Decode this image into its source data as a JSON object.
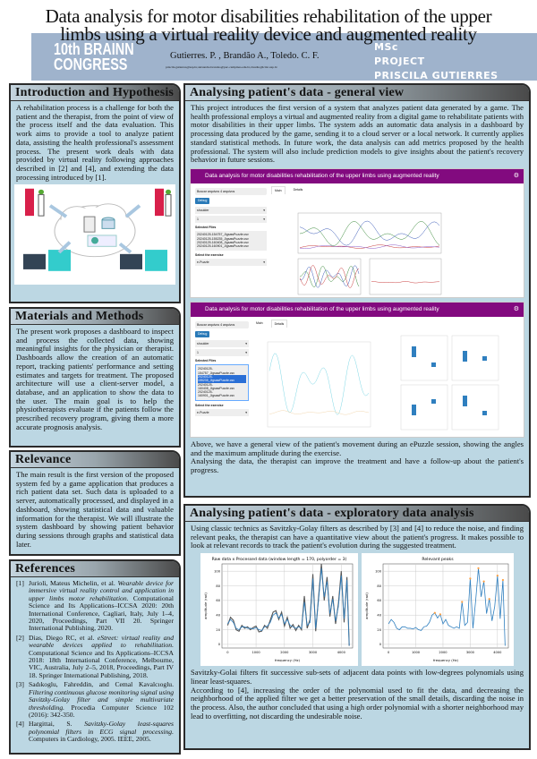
{
  "header": {
    "title_line1": "Data analysis for motor disabilities rehabilitation of the upper",
    "title_line2": "limbs using a virtual reality device and augmented reality",
    "congress_line1": "10th BRAINN",
    "congress_line2": "CONGRESS",
    "authors": "Gutierres. P. , Brandão A., Toledo. C. F.",
    "emails": "priscila.gutierres@usp.br,alexandre.brandao@puc-campinas.edu.br,claudio@icmc.usp.br",
    "project_line1": "MSc",
    "project_line2": "PROJECT",
    "project_line3": "PRISCILA GUTIERRES",
    "band_color": "#9fb3cc"
  },
  "intro": {
    "title": "Introduction and Hypothesis",
    "body": "A rehabilitation process is a challenge for both the patient and the therapist, from the point of view of the process itself and the data evaluation. This work aims to provide a tool to analyze patient data, assisting the health professional's assessment process. The present work deals with data provided by virtual reality following approaches described in [2] and [4], and extending the data processing introduced by [1]."
  },
  "methods": {
    "title": "Materials and Methods",
    "body": "The present work proposes a dashboard to inspect and process the collected data, showing meaningful insights for the physician or therapist. Dashboards allow the creation of an automatic report, tracking patients' performance and setting estimates and targets for treatment. The proposed architecture will use a client-server model, a database, and an application to show the data to the user. The main goal is to help the physiotherapists evaluate if the patients follow the prescribed recovery program, giving them a more accurate prognosis analysis."
  },
  "relevance": {
    "title": "Relevance",
    "body": "The main result is the first version of the proposed system fed by a game application that produces a rich patient data set. Such data is uploaded to a server, automatically processed, and displayed in a dashboard, showing statistical data and valuable information for the therapist. We will illustrate the system dashboard by showing patient behavior during sessions through graphs and statistical data later."
  },
  "references": {
    "title": "References",
    "items": [
      {
        "n": "[1]",
        "authors": "Jurioli, Mateus Michelin, et al.",
        "title": "Wearable device for immersive virtual reality control and application in upper limbs motor rehabilitation.",
        "rest": "Computational Science and Its Applications–ICCSA 2020: 20th International Conference, Cagliari, Italy, July 1–4, 2020, Proceedings, Part VII 20. Springer International Publishing, 2020."
      },
      {
        "n": "[2]",
        "authors": "Dias, Diego RC, et al.",
        "title": "eStreet: virtual reality and wearable devices applied to rehabilitation.",
        "rest": "Computational Science and Its Applications–ICCSA 2018: 18th International Conference, Melbourne, VIC, Australia, July 2–5, 2018, Proceedings, Part IV 18. Springer International Publishing, 2018."
      },
      {
        "n": "[3]",
        "authors": "Sadıkoglu, Fahreddin, and Cemal Kavalcıoglu.",
        "title": "Filtering continuous glucose monitoring signal using Savitzky-Golay filter and simple multivariate thresholding.",
        "rest": "Procedia Computer Science 102 (2016): 342-350."
      },
      {
        "n": "[4]",
        "authors": "Hargittai, S.",
        "title": "Savitzky-Golay least-squares polynomial filters in ECG signal processing.",
        "rest": "Computers in Cardiology, 2005. IEEE, 2005."
      }
    ]
  },
  "general": {
    "title": "Analysing patient's data - general view",
    "body": "This project introduces the first version of a system that analyzes patient data generated by a game. The health professional employs a virtual and augmented reality from a digital game to rehabilitate patients with motor disabilities in their upper limbs. The system adds an automatic data analysis in a dashboard by processing data produced by the game, sending it to a cloud server or a local network. It currently applies standard statistical methods. In future work, the data analysis can add metrics proposed by the health professional. The system will also include prediction models to give insights about the patient's recovery behavior in future sessions.",
    "after1": "Above, we have a general view of the patient's movement during an ePuzzle session, showing the angles and the maximum amplitude during the exercise.",
    "after2": "Analysing the data, the therapist can improve the treatment and have a follow-up about the patient's progress.",
    "dashboard": {
      "app_title": "Data analysis for motor disabilities rehabilitation of the upper limbs using augmented reality",
      "browse": "Buscar arquivos",
      "file_count": "4 arquivos",
      "debug": "Debug",
      "joint": "shoulder",
      "index": "1",
      "selected_files_label": "Selected Files",
      "files": [
        "20240125-154757_JigsawPuzzle.csv",
        "20240125-155235_JigsawPuzzle.csv",
        "20240125-160408_JigsawPuzzle.csv",
        "20240125-160901_JigsawPuzzle.csv"
      ],
      "exercise_label": "Select the exercise",
      "exercise": "e-Puzzle",
      "tab_main": "Main",
      "tab_details": "Details",
      "accent": "#820a7f"
    }
  },
  "exploratory": {
    "title": "Analysing patient's data - exploratory data analysis",
    "body": "Using classic technics as Savitzky-Golay filters as described by [3] and [4] to reduce the noise, and finding relevant peaks, the therapist can have a quantitative view about the patient's progress. It makes possible to look at relevant records to track the patient's evolution during the suggested treatment.",
    "after1": "Savitzky-Golai filters fit successive sub-sets of adjacent data points with low-degrees polynomials using linear least-squares.",
    "after2": "According to [4], increasing the order of the polynomial used to fit the data, and decreasing the neighborhood of the applied filter we get a better preservation of the small details, discarding the noise in the process. Also, the author concluded that using a high order polynomial with a shorter neighborhood may lead to overfitting, not discarding the undesirable noise."
  },
  "chart_data": [
    {
      "type": "line",
      "title": "Raw data x Processed data (window length =  170, polyorder = 3)",
      "xlabel": "frequency (Hz)",
      "ylabel": "amplitude (rad)",
      "xlim": [
        -200,
        4400
      ],
      "ylim": [
        -5,
        110
      ],
      "xticks": [
        0,
        1000,
        2000,
        3000,
        4000
      ],
      "yticks": [
        0,
        20,
        40,
        60,
        80,
        100
      ],
      "grid": true,
      "x": [
        0,
        100,
        200,
        300,
        400,
        500,
        600,
        700,
        800,
        900,
        1000,
        1100,
        1200,
        1300,
        1400,
        1500,
        1600,
        1700,
        1800,
        1900,
        2000,
        2100,
        2200,
        2300,
        2400,
        2500,
        2600,
        2700,
        2800,
        2900,
        3000,
        3100,
        3200,
        3300,
        3400,
        3500,
        3600,
        3700,
        3800,
        3900,
        4000,
        4100,
        4200,
        4280
      ],
      "series": [
        {
          "values": [
            26,
            37,
            33,
            20,
            18,
            26,
            22,
            24,
            20,
            23,
            25,
            17,
            18,
            26,
            22,
            33,
            44,
            46,
            34,
            44,
            25,
            37,
            22,
            27,
            19,
            26,
            20,
            66,
            22,
            34,
            96,
            18,
            64,
            110,
            60,
            92,
            38,
            66,
            28,
            56,
            100,
            30,
            92,
            -2
          ],
          "color": "#555555"
        },
        {
          "values": [
            28,
            34,
            30,
            22,
            20,
            24,
            24,
            22,
            22,
            21,
            23,
            20,
            19,
            24,
            25,
            30,
            40,
            43,
            36,
            41,
            28,
            34,
            26,
            24,
            22,
            24,
            22,
            58,
            26,
            30,
            90,
            22,
            60,
            104,
            65,
            86,
            42,
            62,
            32,
            52,
            94,
            35,
            88,
            -2
          ],
          "color": "#2f7fbf"
        }
      ]
    },
    {
      "type": "line",
      "title": "Relevant peaks",
      "xlabel": "frequency (Hz)",
      "ylabel": "amplitude (rad)",
      "xlim": [
        -200,
        4400
      ],
      "ylim": [
        -5,
        110
      ],
      "xticks": [
        0,
        1000,
        2000,
        3000,
        4000
      ],
      "yticks": [
        0,
        20,
        40,
        60,
        80,
        100
      ],
      "grid": true,
      "x": [
        0,
        100,
        200,
        300,
        400,
        500,
        600,
        700,
        800,
        900,
        1000,
        1100,
        1200,
        1300,
        1400,
        1500,
        1600,
        1700,
        1800,
        1900,
        2000,
        2100,
        2200,
        2300,
        2400,
        2500,
        2600,
        2700,
        2800,
        2900,
        3000,
        3100,
        3200,
        3300,
        3400,
        3500,
        3600,
        3700,
        3800,
        3900,
        4000,
        4100,
        4200,
        4280
      ],
      "series": [
        {
          "values": [
            28,
            34,
            30,
            22,
            20,
            24,
            24,
            22,
            22,
            21,
            23,
            20,
            19,
            24,
            25,
            30,
            40,
            43,
            36,
            41,
            28,
            34,
            26,
            24,
            22,
            24,
            22,
            58,
            26,
            30,
            90,
            22,
            60,
            104,
            65,
            86,
            42,
            62,
            32,
            52,
            94,
            35,
            88,
            -2
          ],
          "color": "#2f7fbf"
        }
      ],
      "peaks": {
        "x": [
          1700,
          1900,
          2700,
          3000,
          3300,
          3500,
          3700,
          4000,
          4200
        ],
        "y": [
          43,
          41,
          58,
          90,
          104,
          86,
          62,
          94,
          88
        ],
        "color": "#ff9f40"
      }
    }
  ]
}
